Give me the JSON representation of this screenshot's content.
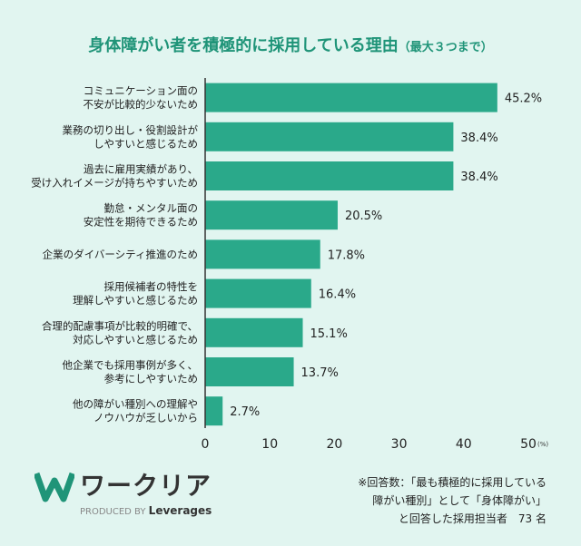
{
  "chart_data": {
    "type": "bar",
    "orientation": "horizontal",
    "title": "身体障がい者を積極的に採用している理由",
    "subtitle": "（最大３つまで）",
    "categories": [
      [
        "コミュニケーション面の",
        "不安が比較的少ないため"
      ],
      [
        "業務の切り出し・役割設計が",
        "しやすいと感じるため"
      ],
      [
        "過去に雇用実績があり、",
        "受け入れイメージが持ちやすいため"
      ],
      [
        "勤怠・メンタル面の",
        "安定性を期待できるため"
      ],
      [
        "企業のダイバーシティ推進のため"
      ],
      [
        "採用候補者の特性を",
        "理解しやすいと感じるため"
      ],
      [
        "合理的配慮事項が比較的明確で、",
        "対応しやすいと感じるため"
      ],
      [
        "他企業でも採用事例が多く、",
        "参考にしやすいため"
      ],
      [
        "他の障がい種別への理解や",
        "ノウハウが乏しいから"
      ]
    ],
    "values": [
      45.2,
      38.4,
      38.4,
      20.5,
      17.8,
      16.4,
      15.1,
      13.7,
      2.7
    ],
    "value_labels": [
      "45.2%",
      "38.4%",
      "38.4%",
      "20.5%",
      "17.8%",
      "16.4%",
      "15.1%",
      "13.7%",
      "2.7%"
    ],
    "xlim": [
      0,
      50
    ],
    "xticks": [
      0,
      10,
      20,
      30,
      40,
      50
    ],
    "xunit": "(%)",
    "grid": false,
    "bar_color": "#2aa98a",
    "title_color": "#1f9478"
  },
  "logo": {
    "name": "ワークリア",
    "produced_by": "PRODUCED BY",
    "company": "Leverages"
  },
  "note": [
    "※回答数：「最も積極的に採用している",
    "障がい種別」として「身体障がい」",
    "と回答した採用担当者　73 名"
  ]
}
